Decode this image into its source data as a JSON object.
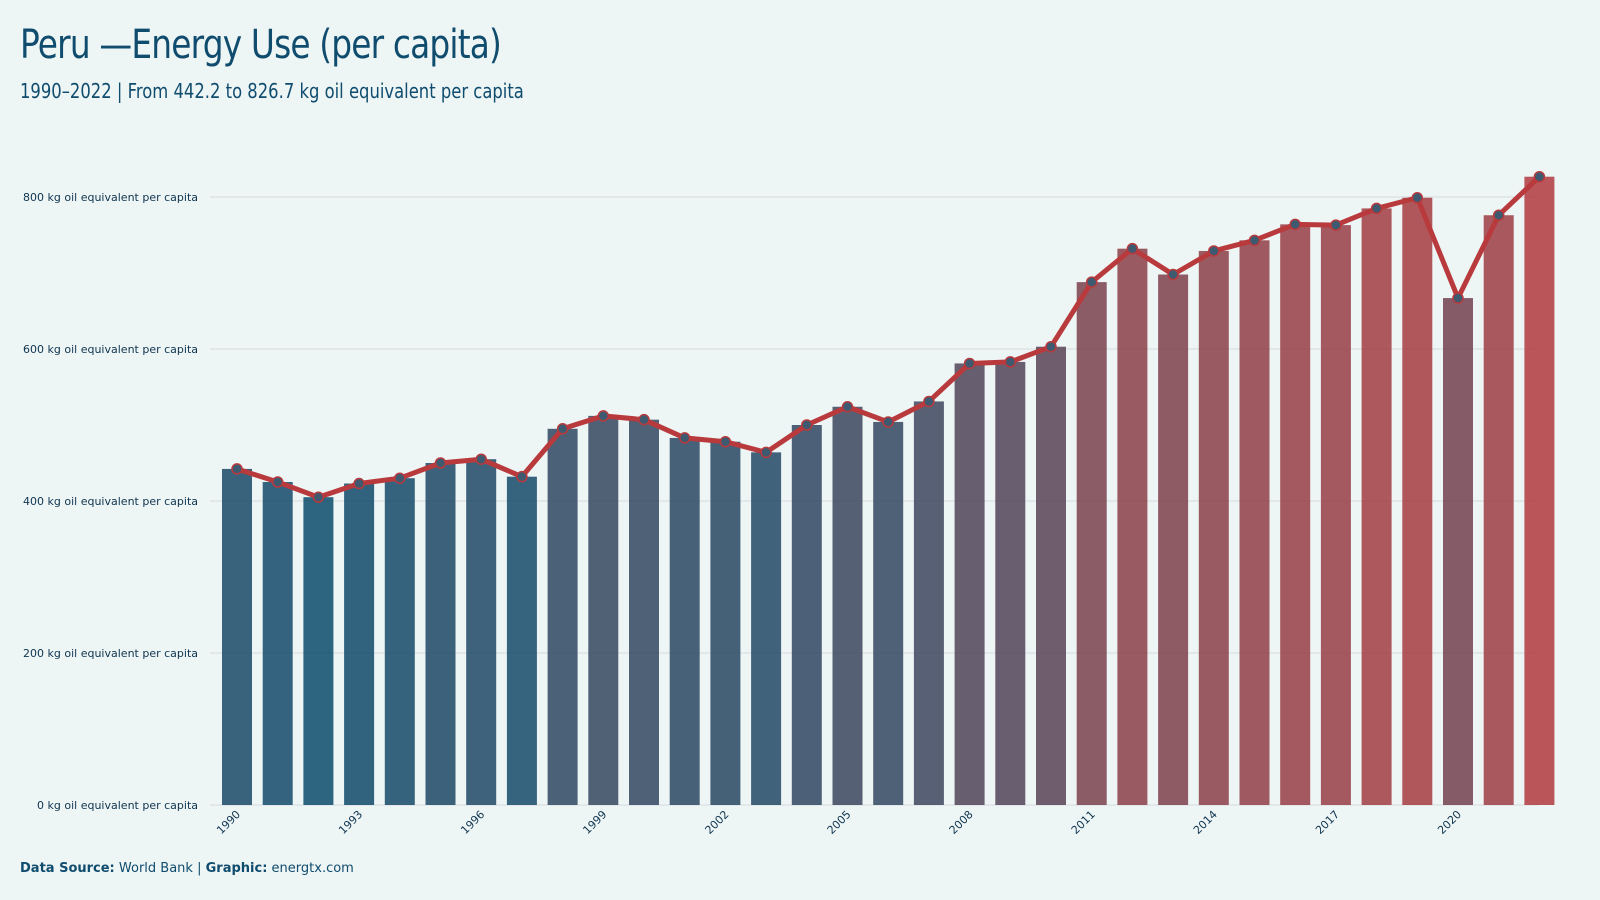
{
  "header": {
    "title": "Peru —Energy Use (per capita)",
    "subtitle": "1990–2022 | From 442.2 to 826.7 kg oil equivalent per capita"
  },
  "footer": {
    "source_label": "Data Source:",
    "source_value": "World Bank",
    "separator": "|",
    "graphic_label": "Graphic:",
    "graphic_value": "energtx.com"
  },
  "colors": {
    "low": "#0a4a6a",
    "high": "#b03a3d",
    "line": "#b83a3d",
    "marker": "#3d5a70",
    "grid": "#d5dcdf",
    "background": "#eef5f5"
  },
  "chart_data": {
    "type": "bar",
    "overlay": "line",
    "title": "Peru —Energy Use (per capita)",
    "ylim": [
      0,
      850
    ],
    "grid": true,
    "ytick_values": [
      0,
      200,
      400,
      600,
      800
    ],
    "ytick_labels": [
      "0 kg oil equivalent per capita",
      "200 kg oil equivalent per capita",
      "400 kg oil equivalent per capita",
      "600 kg oil equivalent per capita",
      "800 kg oil equivalent per capita"
    ],
    "xtick_labels": [
      "1990",
      "1993",
      "1996",
      "1999",
      "2002",
      "2005",
      "2008",
      "2011",
      "2014",
      "2017",
      "2020"
    ],
    "categories": [
      1990,
      1991,
      1992,
      1993,
      1994,
      1995,
      1996,
      1997,
      1998,
      1999,
      2000,
      2001,
      2002,
      2003,
      2004,
      2005,
      2006,
      2007,
      2008,
      2009,
      2010,
      2011,
      2012,
      2013,
      2014,
      2015,
      2016,
      2017,
      2018,
      2019,
      2020,
      2021,
      2022
    ],
    "values": [
      442.2,
      425,
      405,
      423,
      430,
      450,
      455,
      432,
      495,
      512,
      507,
      483,
      478,
      464,
      500,
      524,
      504,
      531,
      581,
      583,
      603,
      688,
      732,
      698,
      729,
      743,
      764,
      763,
      785,
      799,
      667,
      776,
      826.7
    ]
  }
}
